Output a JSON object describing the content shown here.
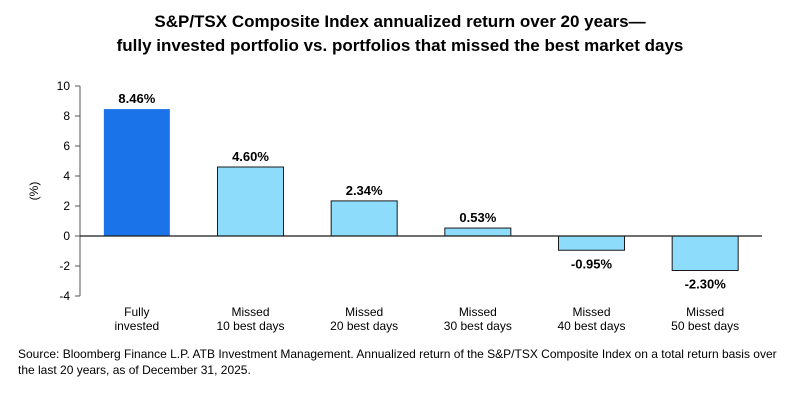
{
  "title_line1": "S&P/TSX Composite Index annualized return over 20 years—",
  "title_line2": "fully invested portfolio vs. portfolios that missed the best market days",
  "source": "Source: Bloomberg Finance L.P. ATB Investment Management. Annualized return of the S&P/TSX Composite Index on a total return basis over the last 20 years, as of December 31, 2025.",
  "colors": {
    "primary": "#1a73e8",
    "secondary": "#8ddcfc",
    "stroke": "#1a1a1a",
    "axis": "#555555"
  },
  "chart_data": {
    "type": "bar",
    "ylabel": "(%)",
    "ylim": [
      -4,
      10
    ],
    "yticks": [
      10,
      8,
      6,
      4,
      2,
      0,
      -2,
      -4
    ],
    "categories": [
      [
        "Fully",
        "invested"
      ],
      [
        "Missed",
        "10 best days"
      ],
      [
        "Missed",
        "20 best days"
      ],
      [
        "Missed",
        "30 best days"
      ],
      [
        "Missed",
        "40 best days"
      ],
      [
        "Missed",
        "50 best days"
      ]
    ],
    "values": [
      8.46,
      4.6,
      2.34,
      0.53,
      -0.95,
      -2.3
    ],
    "data_labels": [
      "8.46%",
      "4.60%",
      "2.34%",
      "0.53%",
      "-0.95%",
      "-2.30%"
    ],
    "grid": false,
    "legend": "none"
  }
}
